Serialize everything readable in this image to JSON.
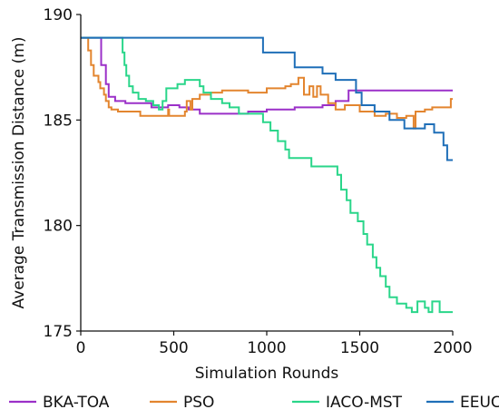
{
  "chart_data": {
    "type": "line",
    "title": "",
    "xlabel": "Simulation Rounds",
    "ylabel": "Average Transmission Distance (m)",
    "xlim": [
      0,
      2000
    ],
    "ylim": [
      175,
      190
    ],
    "x_ticks": [
      0,
      500,
      1000,
      1500,
      2000
    ],
    "y_ticks": [
      175,
      180,
      185,
      190
    ],
    "grid": false,
    "legend_position": "bottom",
    "series": [
      {
        "name": "BKA-TOA",
        "color": "#9b30c8",
        "points": [
          [
            0,
            188.9
          ],
          [
            110,
            188.9
          ],
          [
            110,
            187.6
          ],
          [
            135,
            187.6
          ],
          [
            135,
            186.7
          ],
          [
            150,
            186.7
          ],
          [
            150,
            186.1
          ],
          [
            185,
            186.1
          ],
          [
            185,
            185.9
          ],
          [
            240,
            185.9
          ],
          [
            240,
            185.8
          ],
          [
            380,
            185.8
          ],
          [
            380,
            185.6
          ],
          [
            470,
            185.6
          ],
          [
            470,
            185.7
          ],
          [
            530,
            185.7
          ],
          [
            530,
            185.6
          ],
          [
            580,
            185.6
          ],
          [
            580,
            185.5
          ],
          [
            640,
            185.5
          ],
          [
            640,
            185.3
          ],
          [
            900,
            185.3
          ],
          [
            900,
            185.4
          ],
          [
            1000,
            185.4
          ],
          [
            1000,
            185.5
          ],
          [
            1150,
            185.5
          ],
          [
            1150,
            185.6
          ],
          [
            1300,
            185.6
          ],
          [
            1300,
            185.7
          ],
          [
            1370,
            185.7
          ],
          [
            1370,
            185.9
          ],
          [
            1440,
            185.9
          ],
          [
            1440,
            186.4
          ],
          [
            2000,
            186.4
          ]
        ]
      },
      {
        "name": "PSO",
        "color": "#e3852f",
        "points": [
          [
            0,
            188.9
          ],
          [
            40,
            188.9
          ],
          [
            40,
            188.3
          ],
          [
            55,
            188.3
          ],
          [
            55,
            187.6
          ],
          [
            70,
            187.6
          ],
          [
            70,
            187.1
          ],
          [
            95,
            187.1
          ],
          [
            95,
            186.8
          ],
          [
            105,
            186.8
          ],
          [
            105,
            186.5
          ],
          [
            125,
            186.5
          ],
          [
            125,
            186.2
          ],
          [
            135,
            186.2
          ],
          [
            135,
            185.9
          ],
          [
            150,
            185.9
          ],
          [
            150,
            185.6
          ],
          [
            165,
            185.6
          ],
          [
            165,
            185.5
          ],
          [
            200,
            185.5
          ],
          [
            200,
            185.4
          ],
          [
            320,
            185.4
          ],
          [
            320,
            185.2
          ],
          [
            470,
            185.2
          ],
          [
            470,
            185.5
          ],
          [
            475,
            185.5
          ],
          [
            475,
            185.2
          ],
          [
            560,
            185.2
          ],
          [
            560,
            185.4
          ],
          [
            570,
            185.4
          ],
          [
            570,
            185.9
          ],
          [
            590,
            185.9
          ],
          [
            590,
            185.5
          ],
          [
            600,
            185.5
          ],
          [
            600,
            186.0
          ],
          [
            640,
            186.0
          ],
          [
            640,
            186.2
          ],
          [
            700,
            186.2
          ],
          [
            700,
            186.3
          ],
          [
            760,
            186.3
          ],
          [
            760,
            186.4
          ],
          [
            900,
            186.4
          ],
          [
            900,
            186.3
          ],
          [
            1000,
            186.3
          ],
          [
            1000,
            186.5
          ],
          [
            1100,
            186.5
          ],
          [
            1100,
            186.6
          ],
          [
            1130,
            186.6
          ],
          [
            1130,
            186.7
          ],
          [
            1170,
            186.7
          ],
          [
            1170,
            187.0
          ],
          [
            1200,
            187.0
          ],
          [
            1200,
            186.2
          ],
          [
            1230,
            186.2
          ],
          [
            1230,
            186.6
          ],
          [
            1250,
            186.6
          ],
          [
            1250,
            186.1
          ],
          [
            1270,
            186.1
          ],
          [
            1270,
            186.6
          ],
          [
            1290,
            186.6
          ],
          [
            1290,
            186.2
          ],
          [
            1330,
            186.2
          ],
          [
            1330,
            185.8
          ],
          [
            1370,
            185.8
          ],
          [
            1370,
            185.5
          ],
          [
            1420,
            185.5
          ],
          [
            1420,
            185.7
          ],
          [
            1500,
            185.7
          ],
          [
            1500,
            185.4
          ],
          [
            1580,
            185.4
          ],
          [
            1580,
            185.2
          ],
          [
            1640,
            185.2
          ],
          [
            1640,
            185.3
          ],
          [
            1700,
            185.3
          ],
          [
            1700,
            185.1
          ],
          [
            1750,
            185.1
          ],
          [
            1750,
            185.2
          ],
          [
            1790,
            185.2
          ],
          [
            1790,
            184.6
          ],
          [
            1800,
            184.6
          ],
          [
            1800,
            185.4
          ],
          [
            1850,
            185.4
          ],
          [
            1850,
            185.5
          ],
          [
            1890,
            185.5
          ],
          [
            1890,
            185.6
          ],
          [
            1990,
            185.6
          ],
          [
            1990,
            186.0
          ],
          [
            2000,
            186.0
          ]
        ]
      },
      {
        "name": "IACO-MST",
        "color": "#2ad68a",
        "points": [
          [
            0,
            188.9
          ],
          [
            225,
            188.9
          ],
          [
            225,
            188.2
          ],
          [
            235,
            188.2
          ],
          [
            235,
            187.6
          ],
          [
            245,
            187.6
          ],
          [
            245,
            187.1
          ],
          [
            260,
            187.1
          ],
          [
            260,
            186.6
          ],
          [
            280,
            186.6
          ],
          [
            280,
            186.3
          ],
          [
            310,
            186.3
          ],
          [
            310,
            186.0
          ],
          [
            350,
            186.0
          ],
          [
            350,
            185.9
          ],
          [
            390,
            185.9
          ],
          [
            390,
            185.7
          ],
          [
            420,
            185.7
          ],
          [
            420,
            185.5
          ],
          [
            440,
            185.5
          ],
          [
            440,
            185.9
          ],
          [
            460,
            185.9
          ],
          [
            460,
            186.5
          ],
          [
            520,
            186.5
          ],
          [
            520,
            186.7
          ],
          [
            560,
            186.7
          ],
          [
            560,
            186.9
          ],
          [
            640,
            186.9
          ],
          [
            640,
            186.6
          ],
          [
            660,
            186.6
          ],
          [
            660,
            186.3
          ],
          [
            700,
            186.3
          ],
          [
            700,
            186.0
          ],
          [
            760,
            186.0
          ],
          [
            760,
            185.8
          ],
          [
            800,
            185.8
          ],
          [
            800,
            185.6
          ],
          [
            850,
            185.6
          ],
          [
            850,
            185.3
          ],
          [
            980,
            185.3
          ],
          [
            980,
            184.9
          ],
          [
            1020,
            184.9
          ],
          [
            1020,
            184.5
          ],
          [
            1060,
            184.5
          ],
          [
            1060,
            184.0
          ],
          [
            1100,
            184.0
          ],
          [
            1100,
            183.6
          ],
          [
            1120,
            183.6
          ],
          [
            1120,
            183.2
          ],
          [
            1240,
            183.2
          ],
          [
            1240,
            182.8
          ],
          [
            1380,
            182.8
          ],
          [
            1380,
            182.4
          ],
          [
            1400,
            182.4
          ],
          [
            1400,
            181.7
          ],
          [
            1430,
            181.7
          ],
          [
            1430,
            181.2
          ],
          [
            1450,
            181.2
          ],
          [
            1450,
            180.6
          ],
          [
            1490,
            180.6
          ],
          [
            1490,
            180.2
          ],
          [
            1520,
            180.2
          ],
          [
            1520,
            179.6
          ],
          [
            1540,
            179.6
          ],
          [
            1540,
            179.1
          ],
          [
            1570,
            179.1
          ],
          [
            1570,
            178.5
          ],
          [
            1590,
            178.5
          ],
          [
            1590,
            178.0
          ],
          [
            1610,
            178.0
          ],
          [
            1610,
            177.6
          ],
          [
            1640,
            177.6
          ],
          [
            1640,
            177.1
          ],
          [
            1660,
            177.1
          ],
          [
            1660,
            176.6
          ],
          [
            1700,
            176.6
          ],
          [
            1700,
            176.3
          ],
          [
            1750,
            176.3
          ],
          [
            1750,
            176.1
          ],
          [
            1780,
            176.1
          ],
          [
            1780,
            175.9
          ],
          [
            1810,
            175.9
          ],
          [
            1810,
            176.4
          ],
          [
            1850,
            176.4
          ],
          [
            1850,
            176.1
          ],
          [
            1870,
            176.1
          ],
          [
            1870,
            175.9
          ],
          [
            1890,
            175.9
          ],
          [
            1890,
            176.4
          ],
          [
            1930,
            176.4
          ],
          [
            1930,
            175.9
          ],
          [
            2000,
            175.9
          ]
        ]
      },
      {
        "name": "EEUC",
        "color": "#1f6fb8",
        "points": [
          [
            0,
            188.9
          ],
          [
            980,
            188.9
          ],
          [
            980,
            188.2
          ],
          [
            1150,
            188.2
          ],
          [
            1150,
            187.5
          ],
          [
            1300,
            187.5
          ],
          [
            1300,
            187.2
          ],
          [
            1370,
            187.2
          ],
          [
            1370,
            186.9
          ],
          [
            1480,
            186.9
          ],
          [
            1480,
            186.3
          ],
          [
            1510,
            186.3
          ],
          [
            1510,
            185.7
          ],
          [
            1580,
            185.7
          ],
          [
            1580,
            185.4
          ],
          [
            1660,
            185.4
          ],
          [
            1660,
            185.0
          ],
          [
            1740,
            185.0
          ],
          [
            1740,
            184.6
          ],
          [
            1850,
            184.6
          ],
          [
            1850,
            184.8
          ],
          [
            1900,
            184.8
          ],
          [
            1900,
            184.4
          ],
          [
            1950,
            184.4
          ],
          [
            1950,
            183.8
          ],
          [
            1970,
            183.8
          ],
          [
            1970,
            183.1
          ],
          [
            2000,
            183.1
          ]
        ]
      }
    ]
  }
}
